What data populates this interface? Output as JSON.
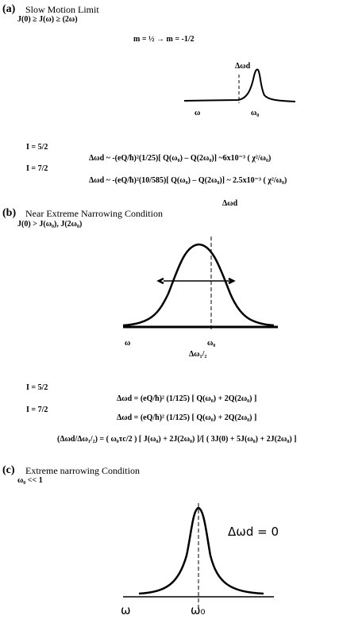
{
  "a": {
    "label": "(a)",
    "title": "Slow Motion Limit",
    "condition": "J(0) ≥ J(ω) ≥ (2ω)",
    "transition": "m = ½ → m = -1/2",
    "shift_label": "Δωd",
    "axis_start": "ω",
    "axis_center": "ω₀",
    "cases": [
      {
        "spin": "I = 5/2",
        "equation": "Δωd ~ -(eQ/ħ)²(1/25)[ Q(ω₀) – Q(2ω₀)] ~6x10⁻³ ( χ²/ω₀)"
      },
      {
        "spin": "I = 7/2",
        "equation": "Δωd ~ -(eQ/ħ)²(10/585)[ Q(ω₀) – Q(2ω₀)] ~ 2.5x10⁻³ ( χ²/ω₀)"
      }
    ]
  },
  "b": {
    "label": "(b)",
    "title": "Near Extreme Narrowing Condition",
    "condition": "J(0) > J(ω₀), J(2ω₀)",
    "shift_label": "Δωd",
    "axis_start": "ω",
    "axis_center": "ω₀",
    "width_label": "Δω₁/₂",
    "cases": [
      {
        "spin": "I = 5/2",
        "equation": "Δωd = (eQ/ħ)² (1/125) [ Q(ω₀) + 2Q(2ω₀) ]"
      },
      {
        "spin": "I = 7/2",
        "equation": "Δωd = (eQ/ħ)² (1/125) [ Q(ω₀) + 2Q(2ω₀) ]"
      }
    ],
    "ratio": "(Δωd/Δω₁/₂) = ( ω₀τc/2 ) [ J(ω₀) + 2J(2ω₀) ]/[ ( 3J(0) + 5J(ω₀) + 2J(2ω₀) ]"
  },
  "c": {
    "label": "(c)",
    "title": "Extreme narrowing Condition",
    "condition": "ω₀ << 1",
    "shift_label": "Δωd = 0",
    "axis_start": "ω",
    "axis_center": "ω₀"
  }
}
